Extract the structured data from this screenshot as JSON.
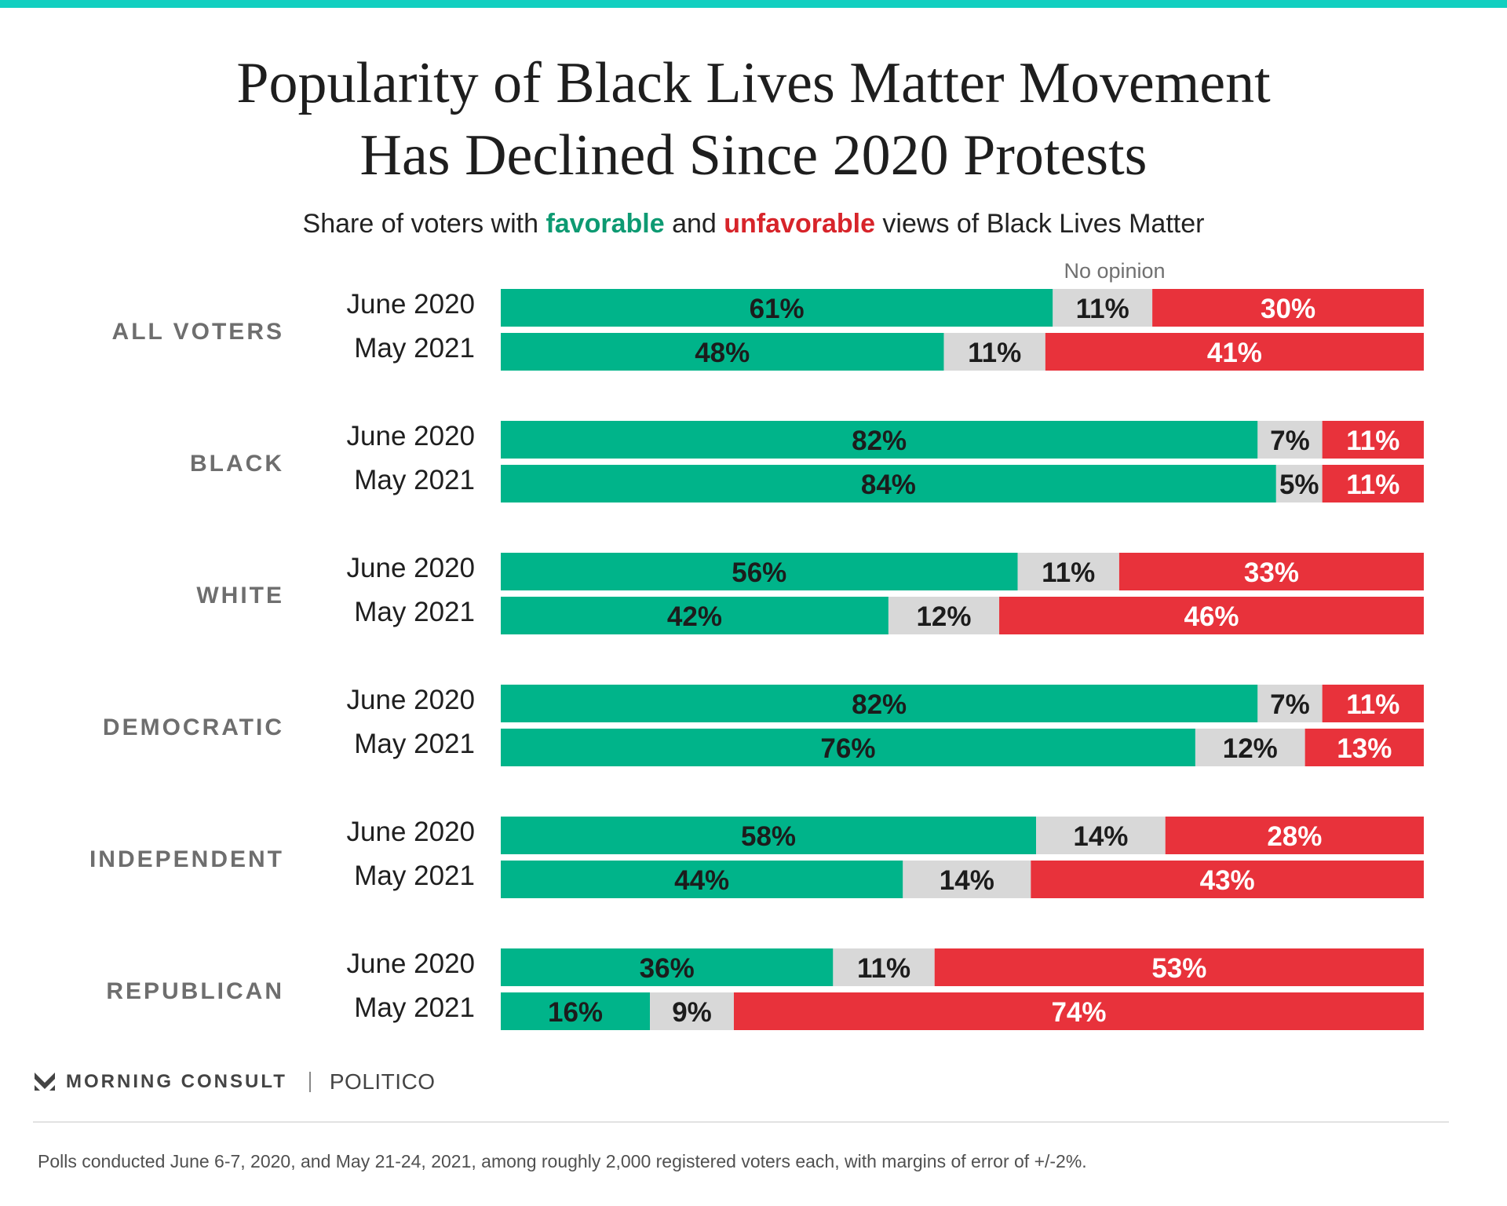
{
  "header": {
    "title_line1": "Popularity of Black Lives Matter Movement",
    "title_line2": "Has Declined Since 2020 Protests",
    "subtitle_pre": "Share of voters with ",
    "subtitle_fav": "favorable",
    "subtitle_mid": " and ",
    "subtitle_unfav": "unfavorable",
    "subtitle_post": " views of Black Lives Matter"
  },
  "colors": {
    "favorable": "#00b48a",
    "no_opinion": "#d8d8d8",
    "unfavorable": "#e8323b",
    "accent": "#12cfc0"
  },
  "chart_data": {
    "type": "bar",
    "orientation": "horizontal",
    "stacked": true,
    "no_opinion_label": "No opinion",
    "series_order": [
      "favorable",
      "no_opinion",
      "unfavorable"
    ],
    "groups": [
      {
        "name": "ALL VOTERS",
        "rows": [
          {
            "period": "June 2020",
            "favorable": 61,
            "no_opinion": 11,
            "unfavorable": 30
          },
          {
            "period": "May 2021",
            "favorable": 48,
            "no_opinion": 11,
            "unfavorable": 41
          }
        ]
      },
      {
        "name": "BLACK",
        "rows": [
          {
            "period": "June 2020",
            "favorable": 82,
            "no_opinion": 7,
            "unfavorable": 11
          },
          {
            "period": "May 2021",
            "favorable": 84,
            "no_opinion": 5,
            "unfavorable": 11
          }
        ]
      },
      {
        "name": "WHITE",
        "rows": [
          {
            "period": "June 2020",
            "favorable": 56,
            "no_opinion": 11,
            "unfavorable": 33
          },
          {
            "period": "May 2021",
            "favorable": 42,
            "no_opinion": 12,
            "unfavorable": 46
          }
        ]
      },
      {
        "name": "DEMOCRATIC",
        "rows": [
          {
            "period": "June 2020",
            "favorable": 82,
            "no_opinion": 7,
            "unfavorable": 11
          },
          {
            "period": "May 2021",
            "favorable": 76,
            "no_opinion": 12,
            "unfavorable": 13
          }
        ]
      },
      {
        "name": "INDEPENDENT",
        "rows": [
          {
            "period": "June 2020",
            "favorable": 58,
            "no_opinion": 14,
            "unfavorable": 28
          },
          {
            "period": "May 2021",
            "favorable": 44,
            "no_opinion": 14,
            "unfavorable": 43
          }
        ]
      },
      {
        "name": "REPUBLICAN",
        "rows": [
          {
            "period": "June 2020",
            "favorable": 36,
            "no_opinion": 11,
            "unfavorable": 53
          },
          {
            "period": "May 2021",
            "favorable": 16,
            "no_opinion": 9,
            "unfavorable": 74
          }
        ]
      }
    ]
  },
  "footer": {
    "brand": "MORNING CONSULT",
    "partner": "POLITICO",
    "note": "Polls conducted June 6-7, 2020, and May 21-24, 2021, among roughly 2,000 registered voters each, with margins of error of +/-2%."
  }
}
